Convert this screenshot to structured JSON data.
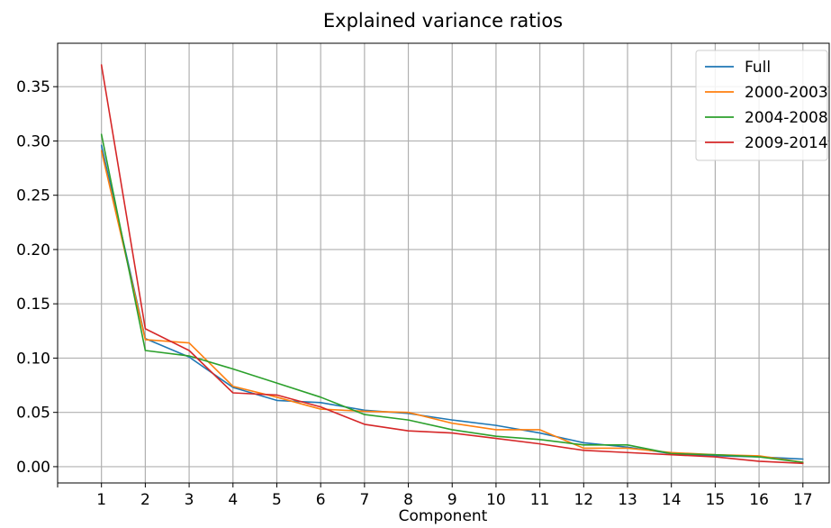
{
  "chart_data": {
    "type": "line",
    "title": "Explained variance ratios",
    "xlabel": "Component",
    "ylabel": "",
    "x": [
      1,
      2,
      3,
      4,
      5,
      6,
      7,
      8,
      9,
      10,
      11,
      12,
      13,
      14,
      15,
      16,
      17
    ],
    "xlim": [
      0,
      17.6
    ],
    "ylim": [
      -0.015,
      0.39
    ],
    "yticks": [
      0.0,
      0.05,
      0.1,
      0.15,
      0.2,
      0.25,
      0.3,
      0.35
    ],
    "ytick_labels": [
      "0.00",
      "0.05",
      "0.10",
      "0.15",
      "0.20",
      "0.25",
      "0.30",
      "0.35"
    ],
    "xtick_labels": [
      "1",
      "2",
      "3",
      "4",
      "5",
      "6",
      "7",
      "8",
      "9",
      "10",
      "11",
      "12",
      "13",
      "14",
      "15",
      "16",
      "17"
    ],
    "grid": true,
    "legend_position": "top-right",
    "series": [
      {
        "name": "Full",
        "color": "#1f77b4",
        "values": [
          0.296,
          0.118,
          0.101,
          0.073,
          0.061,
          0.059,
          0.052,
          0.049,
          0.043,
          0.038,
          0.031,
          0.022,
          0.018,
          0.012,
          0.01,
          0.009,
          0.007
        ]
      },
      {
        "name": "2000-2003",
        "color": "#ff7f0e",
        "values": [
          0.291,
          0.117,
          0.114,
          0.074,
          0.064,
          0.053,
          0.051,
          0.05,
          0.04,
          0.034,
          0.034,
          0.017,
          0.017,
          0.013,
          0.011,
          0.01,
          0.004
        ]
      },
      {
        "name": "2004-2008",
        "color": "#2ca02c",
        "values": [
          0.306,
          0.107,
          0.102,
          0.09,
          0.077,
          0.064,
          0.048,
          0.043,
          0.034,
          0.028,
          0.025,
          0.02,
          0.02,
          0.012,
          0.011,
          0.009,
          0.004
        ]
      },
      {
        "name": "2009-2014",
        "color": "#d62728",
        "values": [
          0.37,
          0.127,
          0.107,
          0.068,
          0.066,
          0.055,
          0.039,
          0.033,
          0.031,
          0.026,
          0.021,
          0.015,
          0.013,
          0.011,
          0.009,
          0.005,
          0.003
        ]
      }
    ]
  }
}
